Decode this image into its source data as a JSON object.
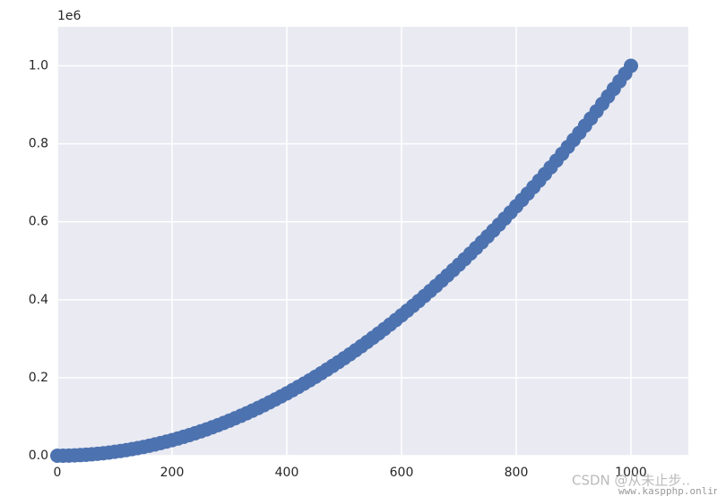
{
  "chart_data": {
    "type": "scatter",
    "y_offset_label": "1e6",
    "watermark": "CSDN @从未止步..",
    "watermark_url": "www.kaspphp.online",
    "color": "#4c72b0",
    "grid": true,
    "xlim": [
      0,
      1100
    ],
    "ylim": [
      0,
      1100000
    ],
    "xticks": [
      0,
      200,
      400,
      600,
      800,
      1000
    ],
    "yticks": [
      {
        "value": 0,
        "label": "0.0"
      },
      {
        "value": 200000,
        "label": "0.2"
      },
      {
        "value": 400000,
        "label": "0.4"
      },
      {
        "value": 600000,
        "label": "0.6"
      },
      {
        "value": 800000,
        "label": "0.8"
      },
      {
        "value": 1000000,
        "label": "1.0"
      }
    ],
    "x": [
      0,
      10,
      20,
      30,
      40,
      50,
      60,
      70,
      80,
      90,
      100,
      110,
      120,
      130,
      140,
      150,
      160,
      170,
      180,
      190,
      200,
      210,
      220,
      230,
      240,
      250,
      260,
      270,
      280,
      290,
      300,
      310,
      320,
      330,
      340,
      350,
      360,
      370,
      380,
      390,
      400,
      410,
      420,
      430,
      440,
      450,
      460,
      470,
      480,
      490,
      500,
      510,
      520,
      530,
      540,
      550,
      560,
      570,
      580,
      590,
      600,
      610,
      620,
      630,
      640,
      650,
      660,
      670,
      680,
      690,
      700,
      710,
      720,
      730,
      740,
      750,
      760,
      770,
      780,
      790,
      800,
      810,
      820,
      830,
      840,
      850,
      860,
      870,
      880,
      890,
      900,
      910,
      920,
      930,
      940,
      950,
      960,
      970,
      980,
      990,
      1000
    ],
    "values": [
      0,
      100,
      400,
      900,
      1600,
      2500,
      3600,
      4900,
      6400,
      8100,
      10000,
      12100,
      14400,
      16900,
      19600,
      22500,
      25600,
      28900,
      32400,
      36100,
      40000,
      44100,
      48400,
      52900,
      57600,
      62500,
      67600,
      72900,
      78400,
      84100,
      90000,
      96100,
      102400,
      108900,
      115600,
      122500,
      129600,
      136900,
      144400,
      152100,
      160000,
      168100,
      176400,
      184900,
      193600,
      202500,
      211600,
      220900,
      230400,
      240100,
      250000,
      260100,
      270400,
      280900,
      291600,
      302500,
      313600,
      324900,
      336400,
      348100,
      360000,
      372100,
      384400,
      396900,
      409600,
      422500,
      435600,
      448900,
      462400,
      476100,
      490000,
      504100,
      518400,
      532900,
      547600,
      562500,
      577600,
      592900,
      608400,
      624100,
      640000,
      656100,
      672400,
      688900,
      705600,
      722500,
      739600,
      756900,
      774400,
      792100,
      810000,
      828100,
      846400,
      864900,
      883600,
      902500,
      921600,
      940900,
      960400,
      980100,
      1000000
    ]
  }
}
